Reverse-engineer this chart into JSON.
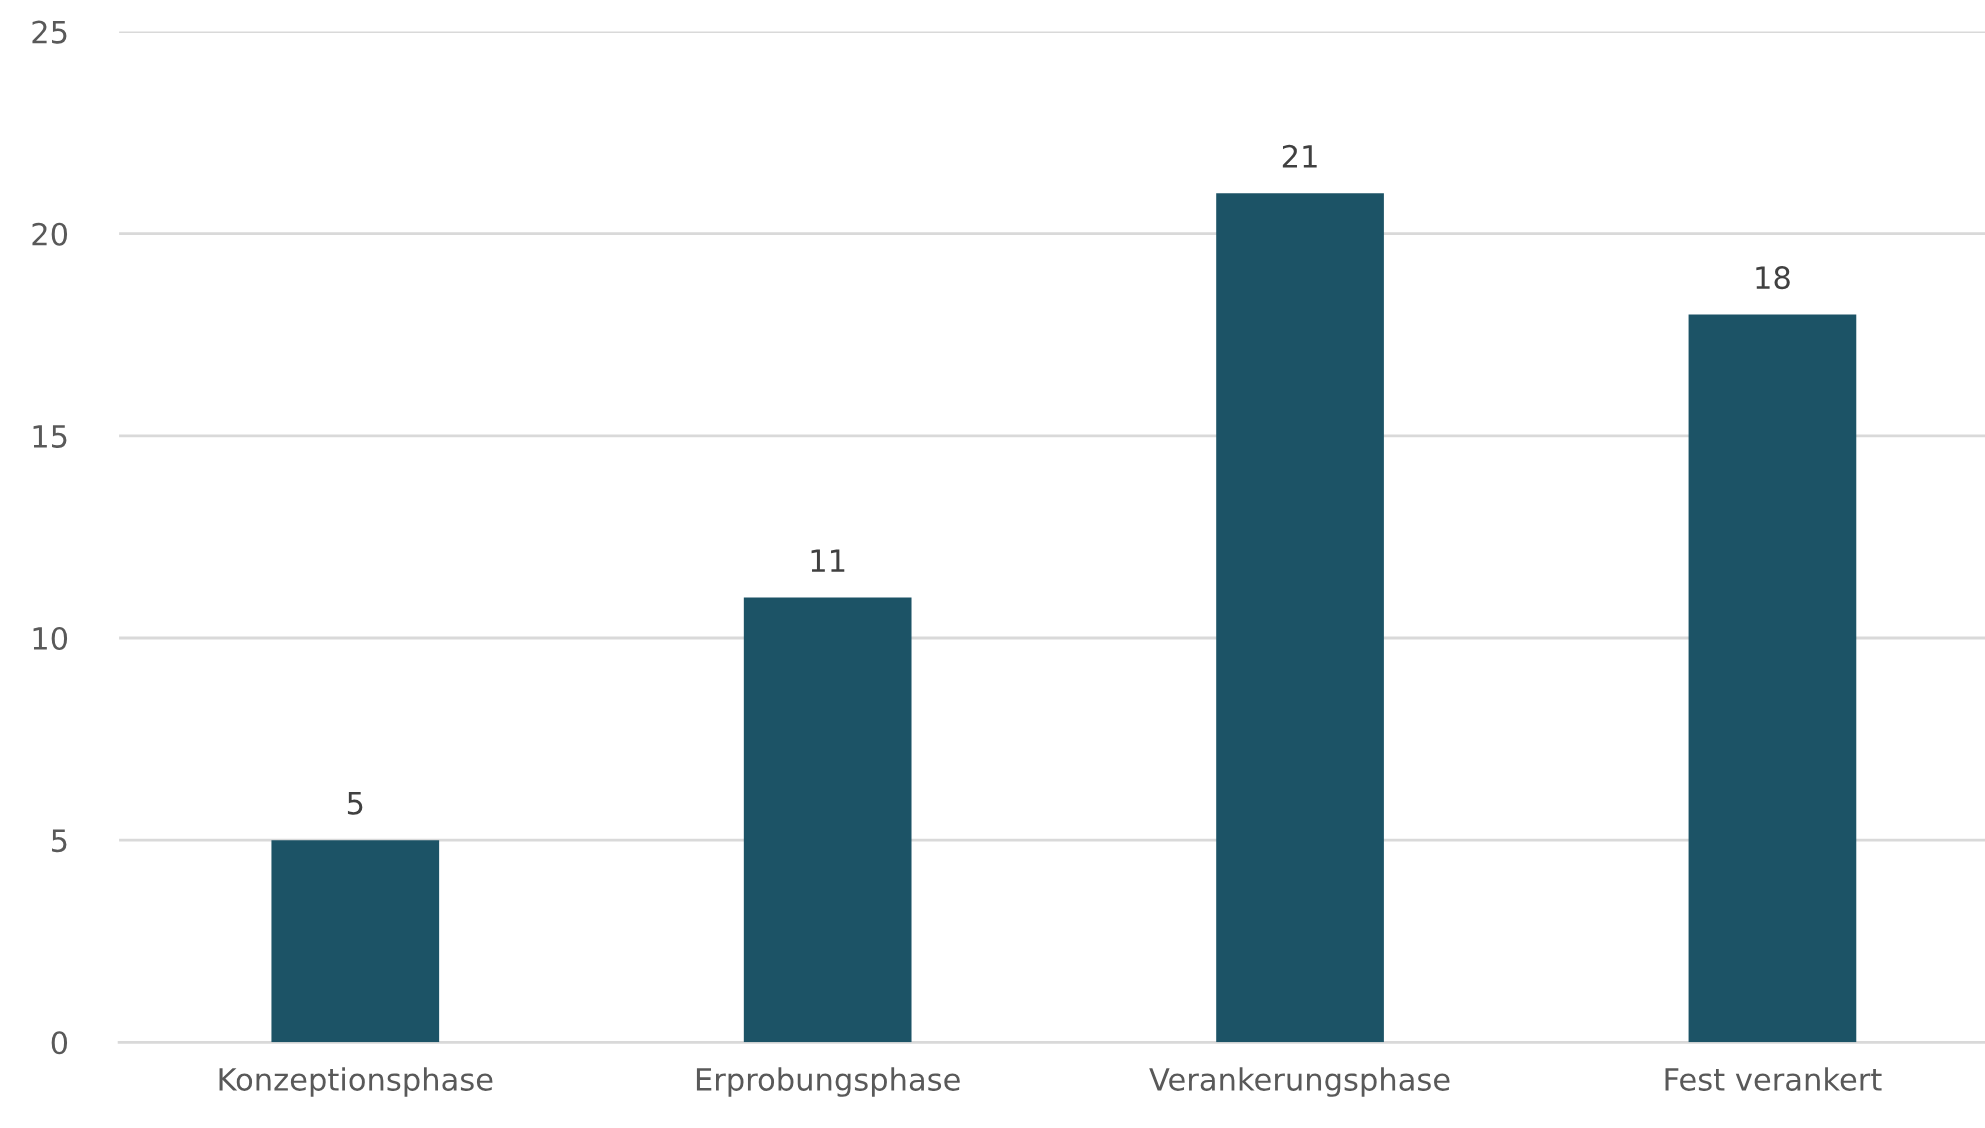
{
  "chart_data": {
    "type": "bar",
    "categories": [
      "Konzeptionsphase",
      "Erprobungsphase",
      "Verankerungsphase",
      "Fest verankert"
    ],
    "values": [
      5,
      11,
      21,
      18
    ],
    "color": "#1c5366",
    "ylim": [
      0,
      25
    ],
    "yticks": [
      0,
      5,
      10,
      15,
      20,
      25
    ],
    "grid": "y",
    "data_labels": true,
    "legend": false
  }
}
